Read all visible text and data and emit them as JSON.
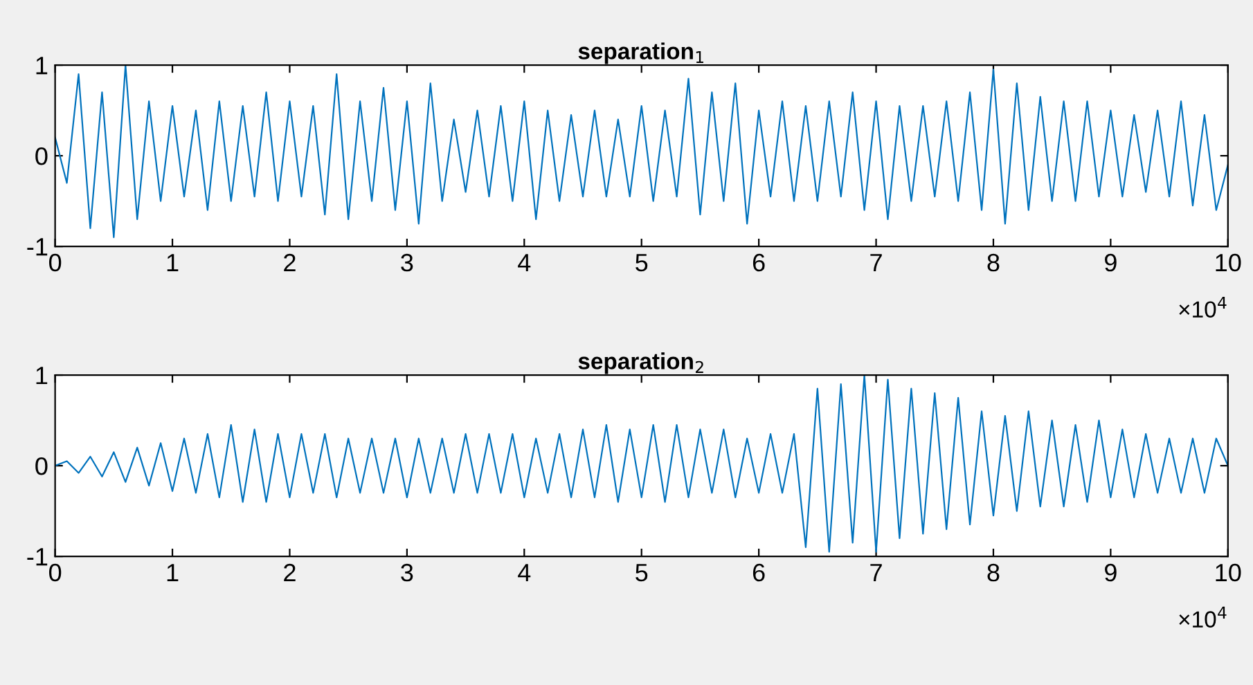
{
  "chart_data": [
    {
      "type": "line",
      "title": "separation$_{1}$",
      "x": [
        0,
        0.1,
        0.2,
        0.3,
        0.4,
        0.5,
        0.6,
        0.7,
        0.8,
        0.9,
        1.0,
        1.1,
        1.2,
        1.3,
        1.4,
        1.5,
        1.6,
        1.7,
        1.8,
        1.9,
        2.0,
        2.1,
        2.2,
        2.3,
        2.4,
        2.5,
        2.6,
        2.7,
        2.8,
        2.9,
        3.0,
        3.1,
        3.2,
        3.3,
        3.4,
        3.5,
        3.6,
        3.7,
        3.8,
        3.9,
        4.0,
        4.1,
        4.2,
        4.3,
        4.4,
        4.5,
        4.6,
        4.7,
        4.8,
        4.9,
        5.0,
        5.1,
        5.2,
        5.3,
        5.4,
        5.5,
        5.6,
        5.7,
        5.8,
        5.9,
        6.0,
        6.1,
        6.2,
        6.3,
        6.4,
        6.5,
        6.6,
        6.7,
        6.8,
        6.9,
        7.0,
        7.1,
        7.2,
        7.3,
        7.4,
        7.5,
        7.6,
        7.7,
        7.8,
        7.9,
        8.0,
        8.1,
        8.2,
        8.3,
        8.4,
        8.5,
        8.6,
        8.7,
        8.8,
        8.9,
        9.0,
        9.1,
        9.2,
        9.3,
        9.4,
        9.5,
        9.6,
        9.7,
        9.8,
        9.9,
        10
      ],
      "series": [
        {
          "color": "#0072bd",
          "values": [
            0.2,
            -0.3,
            0.9,
            -0.8,
            0.7,
            -0.9,
            1.0,
            -0.7,
            0.6,
            -0.5,
            0.55,
            -0.45,
            0.5,
            -0.6,
            0.6,
            -0.5,
            0.55,
            -0.45,
            0.7,
            -0.5,
            0.6,
            -0.45,
            0.55,
            -0.65,
            0.9,
            -0.7,
            0.6,
            -0.5,
            0.75,
            -0.6,
            0.6,
            -0.75,
            0.8,
            -0.5,
            0.4,
            -0.4,
            0.5,
            -0.45,
            0.55,
            -0.5,
            0.6,
            -0.7,
            0.5,
            -0.5,
            0.45,
            -0.45,
            0.5,
            -0.45,
            0.4,
            -0.45,
            0.55,
            -0.5,
            0.5,
            -0.45,
            0.85,
            -0.65,
            0.7,
            -0.5,
            0.8,
            -0.75,
            0.5,
            -0.45,
            0.6,
            -0.5,
            0.55,
            -0.5,
            0.6,
            -0.45,
            0.7,
            -0.6,
            0.6,
            -0.7,
            0.55,
            -0.5,
            0.55,
            -0.45,
            0.6,
            -0.5,
            0.7,
            -0.6,
            0.95,
            -0.75,
            0.8,
            -0.6,
            0.65,
            -0.5,
            0.6,
            -0.5,
            0.6,
            -0.45,
            0.5,
            -0.45,
            0.45,
            -0.4,
            0.5,
            -0.45,
            0.6,
            -0.55,
            0.45,
            -0.6,
            -0.1
          ]
        }
      ],
      "xlim": [
        0,
        10
      ],
      "xticks": [
        0,
        1,
        2,
        3,
        4,
        5,
        6,
        7,
        8,
        9,
        10
      ],
      "ylim": [
        -1,
        1
      ],
      "yticks": [
        -1,
        0,
        1
      ],
      "annotations": [
        "×10$^{4}$"
      ]
    },
    {
      "type": "line",
      "title": "separation$_{2}$",
      "x": [
        0,
        0.1,
        0.2,
        0.3,
        0.4,
        0.5,
        0.6,
        0.7,
        0.8,
        0.9,
        1.0,
        1.1,
        1.2,
        1.3,
        1.4,
        1.5,
        1.6,
        1.7,
        1.8,
        1.9,
        2.0,
        2.1,
        2.2,
        2.3,
        2.4,
        2.5,
        2.6,
        2.7,
        2.8,
        2.9,
        3.0,
        3.1,
        3.2,
        3.3,
        3.4,
        3.5,
        3.6,
        3.7,
        3.8,
        3.9,
        4.0,
        4.1,
        4.2,
        4.3,
        4.4,
        4.5,
        4.6,
        4.7,
        4.8,
        4.9,
        5.0,
        5.1,
        5.2,
        5.3,
        5.4,
        5.5,
        5.6,
        5.7,
        5.8,
        5.9,
        6.0,
        6.1,
        6.2,
        6.3,
        6.4,
        6.5,
        6.6,
        6.7,
        6.8,
        6.9,
        7.0,
        7.1,
        7.2,
        7.3,
        7.4,
        7.5,
        7.6,
        7.7,
        7.8,
        7.9,
        8.0,
        8.1,
        8.2,
        8.3,
        8.4,
        8.5,
        8.6,
        8.7,
        8.8,
        8.9,
        9.0,
        9.1,
        9.2,
        9.3,
        9.4,
        9.5,
        9.6,
        9.7,
        9.8,
        9.9,
        10
      ],
      "series": [
        {
          "color": "#0072bd",
          "values": [
            0,
            0.05,
            -0.08,
            0.1,
            -0.12,
            0.15,
            -0.18,
            0.2,
            -0.22,
            0.25,
            -0.28,
            0.3,
            -0.3,
            0.35,
            -0.35,
            0.45,
            -0.4,
            0.4,
            -0.4,
            0.35,
            -0.35,
            0.35,
            -0.3,
            0.35,
            -0.35,
            0.3,
            -0.3,
            0.3,
            -0.3,
            0.3,
            -0.35,
            0.3,
            -0.3,
            0.3,
            -0.3,
            0.35,
            -0.3,
            0.35,
            -0.3,
            0.35,
            -0.35,
            0.3,
            -0.3,
            0.35,
            -0.35,
            0.4,
            -0.35,
            0.45,
            -0.4,
            0.4,
            -0.35,
            0.45,
            -0.4,
            0.45,
            -0.35,
            0.4,
            -0.3,
            0.4,
            -0.35,
            0.3,
            -0.3,
            0.35,
            -0.3,
            0.35,
            -0.9,
            0.85,
            -0.95,
            0.9,
            -0.85,
            1.0,
            -0.95,
            0.95,
            -0.8,
            0.85,
            -0.75,
            0.8,
            -0.7,
            0.75,
            -0.65,
            0.6,
            -0.55,
            0.55,
            -0.5,
            0.6,
            -0.45,
            0.5,
            -0.45,
            0.45,
            -0.4,
            0.5,
            -0.35,
            0.4,
            -0.35,
            0.35,
            -0.3,
            0.3,
            -0.3,
            0.3,
            -0.3,
            0.3,
            0
          ]
        }
      ],
      "xlim": [
        0,
        10
      ],
      "xticks": [
        0,
        1,
        2,
        3,
        4,
        5,
        6,
        7,
        8,
        9,
        10
      ],
      "ylim": [
        -1,
        1
      ],
      "yticks": [
        -1,
        0,
        1
      ],
      "annotations": [
        "×10$^{4}$"
      ]
    }
  ]
}
